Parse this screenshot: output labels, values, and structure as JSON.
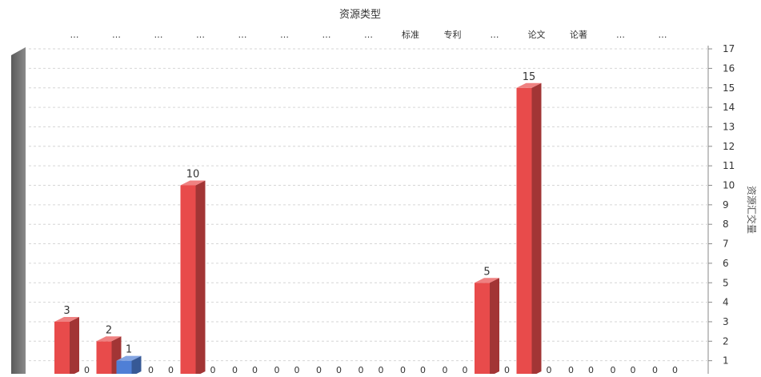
{
  "chart_data": {
    "type": "bar",
    "title": "资源类型",
    "ylabel": "资源汇交量",
    "ylim": [
      0,
      17
    ],
    "yticks": [
      1,
      2,
      3,
      4,
      5,
      6,
      7,
      8,
      9,
      10,
      11,
      12,
      13,
      14,
      15,
      16,
      17
    ],
    "grid": true,
    "style": "3d",
    "categories": [
      "…",
      "…",
      "…",
      "…",
      "…",
      "…",
      "…",
      "…",
      "标准",
      "专利",
      "…",
      "论文",
      "论著",
      "…",
      "…"
    ],
    "series": [
      {
        "color": "#e84b4b",
        "values": [
          3,
          2,
          0,
          10,
          0,
          0,
          0,
          0,
          0,
          0,
          5,
          15,
          0,
          0,
          0
        ]
      },
      {
        "color": "#4f7fd6",
        "values": [
          0,
          1,
          0,
          0,
          0,
          0,
          0,
          0,
          0,
          0,
          0,
          0,
          0,
          0,
          0
        ]
      }
    ]
  }
}
